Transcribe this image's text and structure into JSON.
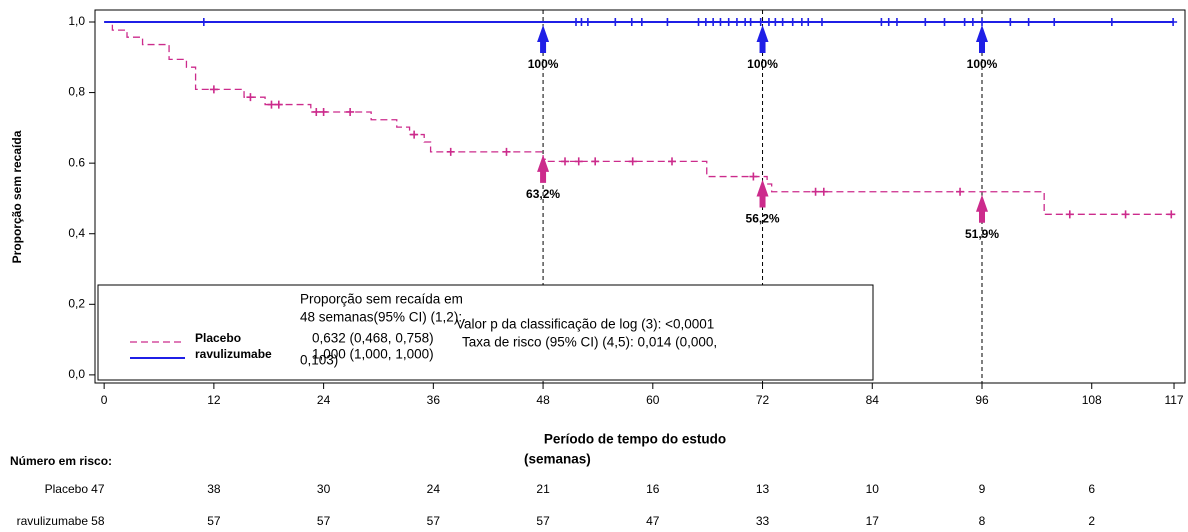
{
  "chart_data": {
    "type": "step",
    "y_label": "Proporção sem recaída",
    "x_label": [
      "Período de tempo do estudo",
      "(semanas)"
    ],
    "xlim": [
      -1,
      118.2
    ],
    "ylim": [
      -0.023,
      1.034
    ],
    "xticks": [
      0,
      12,
      24,
      36,
      48,
      60,
      72,
      84,
      96,
      108,
      117
    ],
    "yticks": [
      {
        "value": 0,
        "label": "0,0"
      },
      {
        "value": 0.2,
        "label": "0,2"
      },
      {
        "value": 0.4,
        "label": "0,4"
      },
      {
        "value": 0.6,
        "label": "0.6"
      },
      {
        "value": 0.8,
        "label": "0,8"
      },
      {
        "value": 1,
        "label": "1,0"
      }
    ],
    "series": [
      {
        "name": "Placebo",
        "color": "#cc2b8c",
        "dashed": true,
        "x": [
          0,
          0.9,
          2.5,
          4.2,
          7.1,
          9,
          10,
          15.3,
          17.6,
          22.6,
          29.2,
          32,
          33.4,
          35,
          35.7,
          48,
          48.5,
          65.9,
          72.5,
          73,
          102.8
        ],
        "values": [
          1,
          0.977,
          0.957,
          0.936,
          0.894,
          0.872,
          0.809,
          0.787,
          0.766,
          0.745,
          0.723,
          0.702,
          0.681,
          0.66,
          0.632,
          0.611,
          0.605,
          0.562,
          0.541,
          0.519,
          0.455
        ],
        "censored": [
          12,
          16,
          18.3,
          19.1,
          23.2,
          24,
          26.9,
          33.9,
          37.9,
          44,
          50.4,
          51.9,
          53.7,
          57.8,
          62.1,
          71,
          77.8,
          78.7,
          93.6,
          105.6,
          111.7,
          116.7
        ],
        "at_risk": [
          47,
          38,
          30,
          24,
          21,
          16,
          13,
          10,
          9,
          6
        ]
      },
      {
        "name": "ravulizumabe",
        "color": "#1f1fe6",
        "dashed": false,
        "x": [
          0
        ],
        "values": [
          1
        ],
        "censored": [
          10.9,
          51.6,
          52.2,
          52.9,
          55.9,
          57.7,
          58.8,
          61.6,
          65,
          65.8,
          66.6,
          67.4,
          68.3,
          69.2,
          70.1,
          70.7,
          71.8,
          72.7,
          73.4,
          74.2,
          75.3,
          76.3,
          77,
          78.5,
          85,
          85.8,
          86.7,
          89.8,
          91.9,
          94.1,
          95,
          96,
          99.1,
          101.1,
          103.9,
          110.2,
          116.9
        ],
        "at_risk": [
          58,
          57,
          57,
          57,
          57,
          47,
          33,
          17,
          8,
          2
        ]
      }
    ],
    "annotations": [
      {
        "series": 1,
        "x": 48,
        "value": 1,
        "label": "100%"
      },
      {
        "series": 1,
        "x": 72,
        "value": 1,
        "label": "100%"
      },
      {
        "series": 1,
        "x": 96,
        "value": 1,
        "label": "100%"
      },
      {
        "series": 0,
        "x": 48,
        "value": 0.632,
        "label": "63,2%"
      },
      {
        "series": 0,
        "x": 72,
        "value": 0.562,
        "label": "56,2%"
      },
      {
        "series": 0,
        "x": 96,
        "value": 0.519,
        "label": "51,9%"
      }
    ],
    "legend_text": {
      "heading": [
        "Proporção sem recaída em",
        "48 semanas(95% CI) (1,2):"
      ],
      "series_values": [
        "0,632 (0,468, 0,758)",
        "1,000 (1,000, 1,000)"
      ],
      "stats": [
        "Valor p da classificação de log (3):  <0,0001",
        "Taxa de risco (95% CI) (4,5): 0,014 (0,000,",
        "0,103)"
      ]
    },
    "risk_title": "Número em risco:"
  }
}
